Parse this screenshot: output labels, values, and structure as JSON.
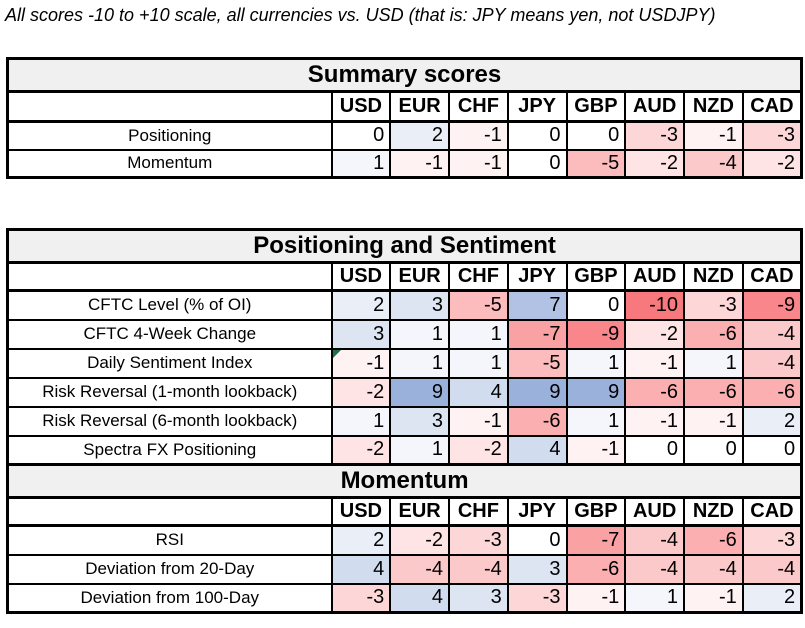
{
  "title": "All scores -10 to +10 scale, all currencies vs. USD (that is: JPY means yen, not USDJPY)",
  "colors": {
    "positive_max": "#8fa8d8",
    "negative_max": "#f8797d",
    "zero": "#ffffff",
    "band_background": "#f0f0f0",
    "grid_border": "#000000",
    "comment_marker_green": "#1e7145"
  },
  "chart_data": {
    "type": "heatmap",
    "title": "All scores -10 to +10 scale, all currencies vs. USD (that is: JPY means yen, not USDJPY)",
    "columns": [
      "USD",
      "EUR",
      "CHF",
      "JPY",
      "GBP",
      "AUD",
      "NZD",
      "CAD"
    ],
    "value_range": [
      -10,
      10
    ],
    "color_scale": {
      "domain": [
        -10,
        0,
        10
      ],
      "range": [
        "#f8797d",
        "#ffffff",
        "#8fa8d8"
      ]
    },
    "tables": [
      {
        "title": "Summary scores",
        "rows": [
          {
            "label": "Positioning",
            "values": [
              0,
              2,
              -1,
              0,
              0,
              -3,
              -1,
              -3
            ]
          },
          {
            "label": "Momentum",
            "values": [
              1,
              -1,
              -1,
              0,
              -5,
              -2,
              -4,
              -2
            ]
          }
        ]
      },
      {
        "title": "Positioning and Sentiment",
        "rows": [
          {
            "label": "CFTC Level (% of OI)",
            "values": [
              2,
              3,
              -5,
              7,
              0,
              -10,
              -3,
              -9
            ]
          },
          {
            "label": "CFTC 4-Week Change",
            "values": [
              3,
              1,
              1,
              -7,
              -9,
              -2,
              -6,
              -4
            ]
          },
          {
            "label": "Daily Sentiment Index",
            "values": [
              -1,
              1,
              1,
              -5,
              1,
              -1,
              1,
              -4
            ],
            "corner_marker_col": 0
          },
          {
            "label": "Risk Reversal (1-month lookback)",
            "values": [
              -2,
              9,
              4,
              9,
              9,
              -6,
              -6,
              -6
            ]
          },
          {
            "label": "Risk Reversal (6-month lookback)",
            "values": [
              1,
              3,
              -1,
              -6,
              1,
              -1,
              -1,
              2
            ]
          },
          {
            "label": "Spectra FX Positioning",
            "values": [
              -2,
              1,
              -2,
              4,
              -1,
              0,
              0,
              0
            ]
          }
        ]
      },
      {
        "title": "Momentum",
        "rows": [
          {
            "label": "RSI",
            "values": [
              2,
              -2,
              -3,
              0,
              -7,
              -4,
              -6,
              -3
            ]
          },
          {
            "label": "Deviation from 20-Day",
            "values": [
              4,
              -4,
              -4,
              3,
              -6,
              -4,
              -4,
              -4
            ]
          },
          {
            "label": "Deviation from 100-Day",
            "values": [
              -3,
              4,
              3,
              -3,
              -1,
              1,
              -1,
              2
            ]
          }
        ]
      }
    ]
  }
}
